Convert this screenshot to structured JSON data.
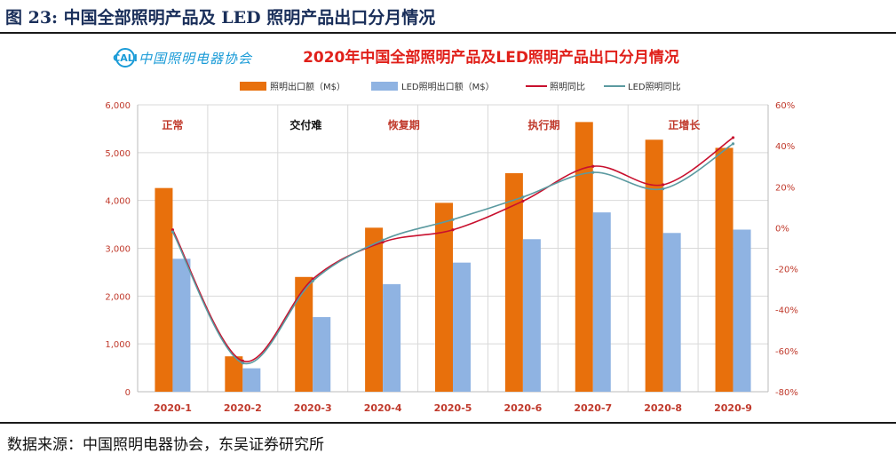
{
  "figure": {
    "title": "图 23:  中国全部照明产品及 LED 照明产品出口分月情况",
    "source": "数据来源：中国照明电器协会，东吴证券研究所",
    "logo_text": "中国照明电器协会"
  },
  "colors": {
    "lighting_bar": "#e8700c",
    "led_bar": "#8fb3e2",
    "lighting_line": "#c8102e",
    "led_line": "#5b9aa0",
    "chart_title": "#e0201a",
    "figure_title": "#1a2f5a",
    "logo": "#1a9bd7"
  },
  "chart_data": {
    "type": "bar",
    "title": "2020年中国全部照明产品及LED照明产品出口分月情况",
    "categories": [
      "2020-1",
      "2020-2",
      "2020-3",
      "2020-4",
      "2020-5",
      "2020-6",
      "2020-7",
      "2020-8",
      "2020-9"
    ],
    "series": [
      {
        "name": "照明出口额（M$）",
        "type": "bar",
        "axis": "left",
        "values": [
          4260,
          740,
          2400,
          3430,
          3950,
          4570,
          5640,
          5270,
          5100
        ]
      },
      {
        "name": "LED照明出口额（M$）",
        "type": "bar",
        "axis": "left",
        "values": [
          2780,
          490,
          1560,
          2250,
          2700,
          3190,
          3750,
          3320,
          3390
        ]
      },
      {
        "name": "照明同比",
        "type": "line",
        "axis": "right",
        "values": [
          -1,
          -65,
          -25,
          -7,
          -1,
          13,
          30,
          21,
          44
        ]
      },
      {
        "name": "LED照明同比",
        "type": "line",
        "axis": "right",
        "values": [
          -2,
          -66,
          -26,
          -6,
          4,
          15,
          27,
          19,
          41
        ]
      }
    ],
    "y_left": {
      "min": 0,
      "max": 6000,
      "ticks": [
        "0",
        "1,000",
        "2,000",
        "3,000",
        "4,000",
        "5,000",
        "6,000"
      ]
    },
    "y_right": {
      "min": -80,
      "max": 60,
      "ticks": [
        "-80%",
        "-60%",
        "-40%",
        "-20%",
        "0%",
        "20%",
        "40%",
        "60%"
      ]
    },
    "phases": [
      {
        "label": "正常",
        "category_index": 0
      },
      {
        "label": "交付难",
        "category_index": 1.9
      },
      {
        "label": "恢复期",
        "category_index": 3.3
      },
      {
        "label": "执行期",
        "category_index": 5.3
      },
      {
        "label": "正增长",
        "category_index": 7.3
      }
    ],
    "grid": true,
    "legend_position": "top"
  }
}
